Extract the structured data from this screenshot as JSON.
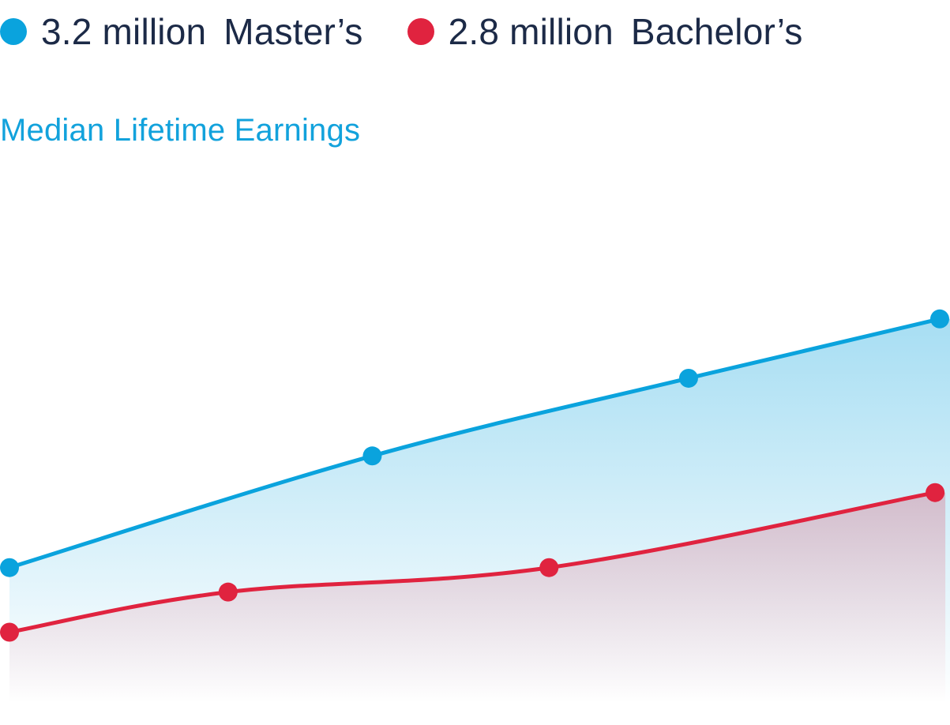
{
  "legend": [
    {
      "value": "3.2 million",
      "label": "Master’s",
      "color": "#0aa3dd"
    },
    {
      "value": "2.8 million",
      "label": "Bachelor’s",
      "color": "#e0233f"
    }
  ],
  "chart_data": {
    "type": "area",
    "title": "Median Lifetime Earnings",
    "xlabel": "",
    "ylabel": "",
    "grid": false,
    "ylim": [
      0,
      600
    ],
    "series": [
      {
        "name": "Master’s",
        "color": "#0aa3dd",
        "points": [
          [
            0.0,
            155
          ],
          [
            0.39,
            283
          ],
          [
            0.73,
            372
          ],
          [
            1.0,
            440
          ]
        ]
      },
      {
        "name": "Bachelor’s",
        "color": "#e0233f",
        "points": [
          [
            0.0,
            81
          ],
          [
            0.235,
            127
          ],
          [
            0.58,
            155
          ],
          [
            0.995,
            241
          ]
        ]
      }
    ]
  }
}
